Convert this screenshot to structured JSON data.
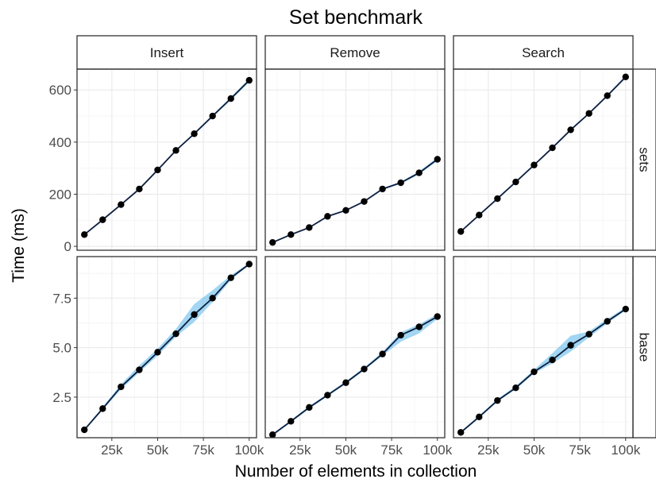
{
  "chart_data": {
    "type": "line",
    "title": "Set benchmark",
    "xlabel": "Number of elements in collection",
    "ylabel": "Time (ms)",
    "x": [
      10000,
      20000,
      30000,
      40000,
      50000,
      60000,
      70000,
      80000,
      90000,
      100000
    ],
    "x_ticks": [
      25000,
      50000,
      75000,
      100000
    ],
    "x_tick_labels": [
      "25k",
      "50k",
      "75k",
      "100k"
    ],
    "xlim": [
      6000,
      104000
    ],
    "columns": [
      "Insert",
      "Remove",
      "Search"
    ],
    "rows": [
      {
        "name": "sets",
        "ylim": [
          -15,
          680
        ],
        "y_ticks": [
          0,
          200,
          400,
          600
        ],
        "y_tick_labels": [
          "0",
          "200",
          "400",
          "600"
        ],
        "panels": [
          {
            "column": "Insert",
            "values": [
              45,
              102,
              160,
              220,
              293,
              368,
              432,
              500,
              567,
              637
            ],
            "lower": [
              44,
              100,
              158,
              217,
              290,
              365,
              428,
              496,
              561,
              630
            ],
            "upper": [
              47,
              104,
              163,
              223,
              296,
              371,
              436,
              504,
              572,
              643
            ]
          },
          {
            "column": "Remove",
            "values": [
              15,
              45,
              72,
              115,
              138,
              172,
              220,
              244,
              282,
              334
            ],
            "lower": [
              14,
              43,
              70,
              113,
              136,
              170,
              216,
              240,
              276,
              328
            ],
            "upper": [
              17,
              47,
              74,
              118,
              141,
              175,
              223,
              248,
              287,
              340
            ]
          },
          {
            "column": "Search",
            "values": [
              57,
              120,
              183,
              247,
              312,
              378,
              447,
              510,
              578,
              650
            ],
            "lower": [
              55,
              118,
              181,
              244,
              309,
              375,
              444,
              507,
              574,
              645
            ],
            "upper": [
              59,
              122,
              186,
              250,
              315,
              381,
              450,
              513,
              582,
              655
            ]
          }
        ]
      },
      {
        "name": "base",
        "ylim": [
          0.45,
          9.6
        ],
        "y_ticks": [
          2.5,
          5.0,
          7.5
        ],
        "y_tick_labels": [
          "2.5",
          "5.0",
          "7.5"
        ],
        "panels": [
          {
            "column": "Insert",
            "values": [
              0.85,
              1.92,
              3.02,
              3.88,
              4.77,
              5.7,
              6.67,
              7.5,
              8.53,
              9.22
            ],
            "lower": [
              0.8,
              1.85,
              2.9,
              3.75,
              4.6,
              5.55,
              6.3,
              7.3,
              8.42,
              9.17
            ],
            "upper": [
              0.9,
              2.0,
              3.15,
              4.1,
              4.95,
              5.95,
              7.2,
              7.9,
              8.65,
              9.27
            ]
          },
          {
            "column": "Remove",
            "values": [
              0.6,
              1.28,
              1.98,
              2.6,
              3.23,
              3.92,
              4.68,
              5.63,
              6.05,
              6.57
            ],
            "lower": [
              0.55,
              1.22,
              1.92,
              2.54,
              3.17,
              3.86,
              4.6,
              5.3,
              5.72,
              6.45
            ],
            "upper": [
              0.65,
              1.34,
              2.05,
              2.66,
              3.3,
              3.99,
              4.78,
              5.78,
              6.18,
              6.7
            ]
          },
          {
            "column": "Search",
            "values": [
              0.72,
              1.5,
              2.33,
              2.97,
              3.78,
              4.38,
              5.12,
              5.68,
              6.33,
              6.95
            ],
            "lower": [
              0.67,
              1.44,
              2.27,
              2.9,
              3.7,
              4.2,
              4.8,
              5.52,
              6.23,
              6.88
            ],
            "upper": [
              0.77,
              1.56,
              2.4,
              3.06,
              3.88,
              4.72,
              5.6,
              5.82,
              6.45,
              7.02
            ]
          }
        ]
      }
    ],
    "grid": true,
    "colors": {
      "line": "#0d1f3f",
      "point": "#000000",
      "ribbon": "#56b4e9",
      "grid_major": "#ebebeb",
      "grid_minor": "#f5f5f5",
      "strip_fill": "#ffffff",
      "strip_border": "#333333"
    }
  }
}
